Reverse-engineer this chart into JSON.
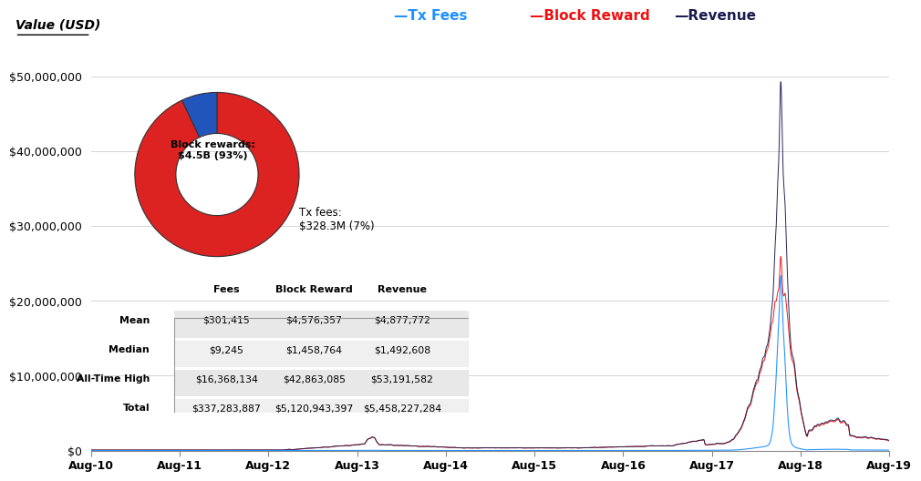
{
  "ylabel": "Value (USD)",
  "legend_entries": [
    "Tx Fees",
    "Block Reward",
    "Revenue"
  ],
  "legend_colors": [
    "#1E90FF",
    "#EE1111",
    "#1a1a4e"
  ],
  "x_labels": [
    "Aug-10",
    "Aug-11",
    "Aug-12",
    "Aug-13",
    "Aug-14",
    "Aug-15",
    "Aug-16",
    "Aug-17",
    "Aug-18",
    "Aug-19"
  ],
  "ylim": [
    0,
    55000000
  ],
  "yticks": [
    0,
    10000000,
    20000000,
    30000000,
    40000000,
    50000000
  ],
  "pie_values": [
    93,
    7
  ],
  "pie_colors": [
    "#DD2222",
    "#2255BB"
  ],
  "table_rows": [
    "Mean",
    "Median",
    "All-Time High",
    "Total"
  ],
  "table_cols": [
    "Fees",
    "Block Reward",
    "Revenue"
  ],
  "table_data": [
    [
      "$301,415",
      "$4,576,357",
      "$4,877,772"
    ],
    [
      "$9,245",
      "$1,458,764",
      "$1,492,608"
    ],
    [
      "$16,368,134",
      "$42,863,085",
      "$53,191,582"
    ],
    [
      "$337,283,887",
      "$5,120,943,397",
      "$5,458,227,284"
    ]
  ],
  "bg_color": "#FFFFFF",
  "grid_color": "#CCCCCC",
  "tx_color": "#1E90FF",
  "block_color": "#EE1111",
  "revenue_color": "#1a1a4e"
}
